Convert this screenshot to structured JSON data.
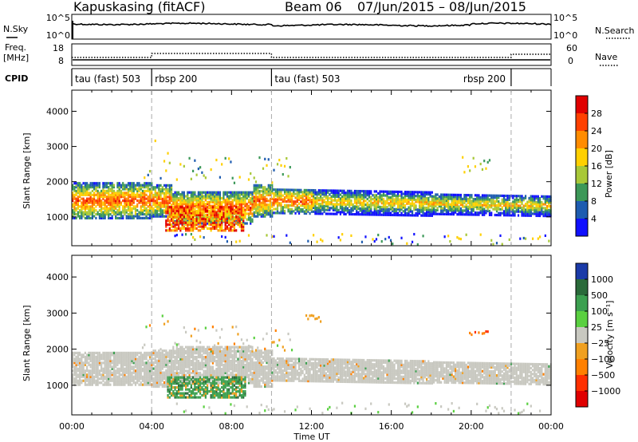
{
  "header": {
    "title": "Kapuskasing (fitACF)",
    "beam": "Beam 06",
    "date_range": "07/Jun/2015 – 08/Jun/2015"
  },
  "noise_panel": {
    "left_label": "N.Sky",
    "right_label": "N.Search",
    "left_ticks": [
      "10^5",
      "10^0"
    ],
    "right_ticks": [
      "10^5",
      "10^0"
    ]
  },
  "freq_panel": {
    "left_label_line1": "Freq.",
    "left_label_line2": "[MHz]",
    "left_ticks": [
      "18",
      "8"
    ],
    "right_label": "Nave",
    "right_ticks": [
      "60",
      "0"
    ]
  },
  "cpid": {
    "label": "CPID",
    "segments": [
      {
        "name": "tau (fast) 503",
        "start_hour": 0,
        "end_hour": 4
      },
      {
        "name": "rbsp 200",
        "start_hour": 4,
        "end_hour": 10
      },
      {
        "name": "tau (fast) 503",
        "start_hour": 10,
        "end_hour": 22
      },
      {
        "name": "rbsp 200",
        "start_hour": 22,
        "end_hour": 24
      }
    ]
  },
  "chart_data": [
    {
      "type": "heatmap",
      "name": "power",
      "ylabel": "Slant Range [km]",
      "yticks": [
        "1000",
        "2000",
        "3000",
        "4000"
      ],
      "ylim": [
        180,
        4600
      ],
      "xlim_hours": [
        0,
        24
      ],
      "colorbar_label": "Power [dB]",
      "colorbar_ticks": [
        "28",
        "24",
        "20",
        "16",
        "12",
        "8",
        "4"
      ],
      "colorbar_colors": [
        "#e00000",
        "#ff4000",
        "#ff8c00",
        "#ffd000",
        "#a8c838",
        "#3c9858",
        "#1e5cb0",
        "#1010ff"
      ],
      "features": [
        {
          "desc": "main band",
          "hours": [
            0,
            24
          ],
          "range_km": [
            1100,
            2000
          ],
          "peak_db": 24
        },
        {
          "desc": "enhanced patch",
          "hours": [
            4.6,
            8.6
          ],
          "range_km": [
            700,
            1300
          ],
          "peak_db": 28
        },
        {
          "desc": "upper scatter",
          "hours": [
            3.5,
            11
          ],
          "range_km": [
            2000,
            3200
          ],
          "peak_db": 20
        },
        {
          "desc": "late high patch",
          "hours": [
            19.5,
            21
          ],
          "range_km": [
            2300,
            2800
          ],
          "peak_db": 16
        }
      ]
    },
    {
      "type": "heatmap",
      "name": "velocity",
      "ylabel": "Slant Range [km]",
      "yticks": [
        "1000",
        "2000",
        "3000",
        "4000"
      ],
      "ylim": [
        180,
        4600
      ],
      "xlim_hours": [
        0,
        24
      ],
      "colorbar_label": "Velocity [m s⁻¹]",
      "colorbar_ticks": [
        "1000",
        "500",
        "100",
        "25",
        "−25",
        "−100",
        "−500",
        "−1000"
      ],
      "colorbar_colors": [
        "#1a3aa8",
        "#2a6a3a",
        "#3ca050",
        "#5ad040",
        "#c8c8c0",
        "#f0a020",
        "#ff8000",
        "#ff3000",
        "#e00000"
      ],
      "features": [
        {
          "desc": "ground scatter band",
          "hours": [
            0,
            24
          ],
          "range_km": [
            1000,
            2000
          ],
          "vel_ms": 0
        },
        {
          "desc": "positive patch",
          "hours": [
            4.7,
            8.7
          ],
          "range_km": [
            700,
            1300
          ],
          "vel_ms": 100
        },
        {
          "desc": "negative patch",
          "hours": [
            11.5,
            12.5
          ],
          "range_km": [
            2700,
            3000
          ],
          "vel_ms": -100
        },
        {
          "desc": "negative patch",
          "hours": [
            19.8,
            20.8
          ],
          "range_km": [
            2400,
            2600
          ],
          "vel_ms": -500
        }
      ]
    }
  ],
  "x_axis": {
    "label": "Time UT",
    "ticks": [
      "00:00",
      "04:00",
      "08:00",
      "12:00",
      "16:00",
      "20:00",
      "00:00"
    ]
  },
  "vertical_markers_hours": [
    4,
    10,
    22
  ]
}
